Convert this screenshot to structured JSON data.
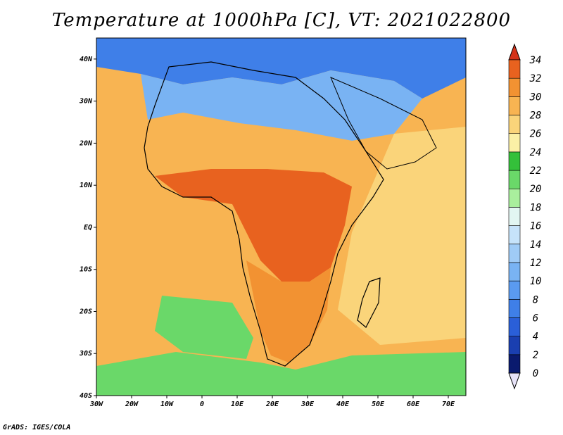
{
  "title": "Temperature at 1000hPa [C], VT: 2021022800",
  "credit": "GrADS: IGES/COLA",
  "map": {
    "lon_range": [
      -30,
      75
    ],
    "lat_range": [
      -40,
      45
    ],
    "lat_ticks": [
      {
        "value": 40,
        "label": "40N"
      },
      {
        "value": 30,
        "label": "30N"
      },
      {
        "value": 20,
        "label": "20N"
      },
      {
        "value": 10,
        "label": "10N"
      },
      {
        "value": 0,
        "label": "EQ"
      },
      {
        "value": -10,
        "label": "10S"
      },
      {
        "value": -20,
        "label": "20S"
      },
      {
        "value": -30,
        "label": "30S"
      },
      {
        "value": -40,
        "label": "40S"
      }
    ],
    "lon_ticks": [
      {
        "value": -30,
        "label": "30W"
      },
      {
        "value": -20,
        "label": "20W"
      },
      {
        "value": -10,
        "label": "10W"
      },
      {
        "value": 0,
        "label": "0"
      },
      {
        "value": 10,
        "label": "10E"
      },
      {
        "value": 20,
        "label": "20E"
      },
      {
        "value": 30,
        "label": "30E"
      },
      {
        "value": 40,
        "label": "40E"
      },
      {
        "value": 50,
        "label": "50E"
      },
      {
        "value": 60,
        "label": "60E"
      },
      {
        "value": 70,
        "label": "70E"
      }
    ]
  },
  "colorbar": {
    "levels": [
      0,
      2,
      4,
      6,
      8,
      10,
      12,
      14,
      16,
      18,
      20,
      22,
      24,
      26,
      28,
      30,
      32,
      34
    ],
    "colors": [
      "#0a1a6e",
      "#1a3fb0",
      "#2a5fd8",
      "#3f7fe8",
      "#5a9af0",
      "#79b3f3",
      "#9fcbf6",
      "#c6e3fa",
      "#e2f6f2",
      "#a9ef9d",
      "#6ad869",
      "#34c03a",
      "#fbf0a6",
      "#fad47a",
      "#f8b452",
      "#f29232",
      "#e8621f",
      "#d4321a"
    ],
    "under_color": "#e6e2f7",
    "over_color": "#d4321a"
  },
  "regions": [
    {
      "name": "north-cold",
      "color": "#3f7fe8"
    },
    {
      "name": "sahara",
      "color": "#79b3f3"
    },
    {
      "name": "sahel",
      "color": "#f8b452"
    },
    {
      "name": "central-hot",
      "color": "#e8621f"
    },
    {
      "name": "southern",
      "color": "#f29232"
    },
    {
      "name": "atlantic",
      "color": "#f8b452"
    },
    {
      "name": "indian",
      "color": "#fad47a"
    },
    {
      "name": "south-atlantic",
      "color": "#6ad869"
    }
  ]
}
